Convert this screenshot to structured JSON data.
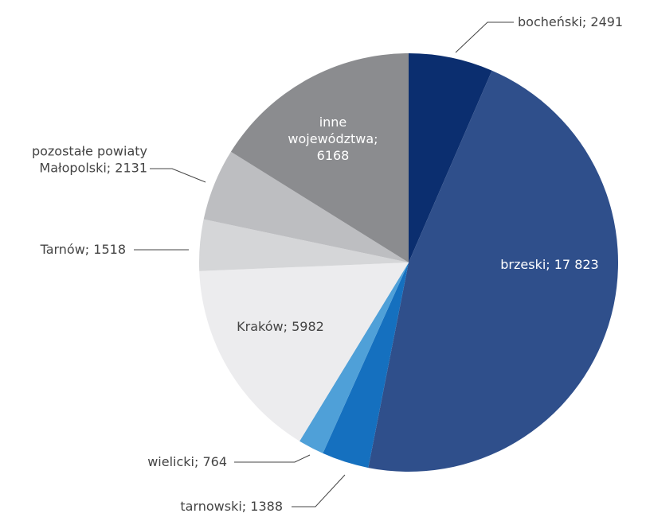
{
  "chart_data": {
    "type": "pie",
    "values": [
      2491,
      17823,
      1388,
      764,
      5982,
      1518,
      2131,
      6168
    ],
    "value_labels": [
      "bocheński; 2491",
      "brzeski; 17 823",
      "tarnowski; 1388",
      "wielicki; 764",
      "Kraków; 5982",
      "Tarnów; 1518",
      "pozostałe powiaty\nMałopolski; 2131",
      "inne\nwojewództwa;\n6168"
    ],
    "colors": [
      "#0b2e6f",
      "#2f4f8b",
      "#1570bf",
      "#4fa0d8",
      "#ececee",
      "#d5d6d8",
      "#bdbec1",
      "#8b8c8f"
    ],
    "label_colors": [
      "#444444",
      "#ffffff",
      "#444444",
      "#444444",
      "#444444",
      "#444444",
      "#444444",
      "#ffffff"
    ]
  }
}
